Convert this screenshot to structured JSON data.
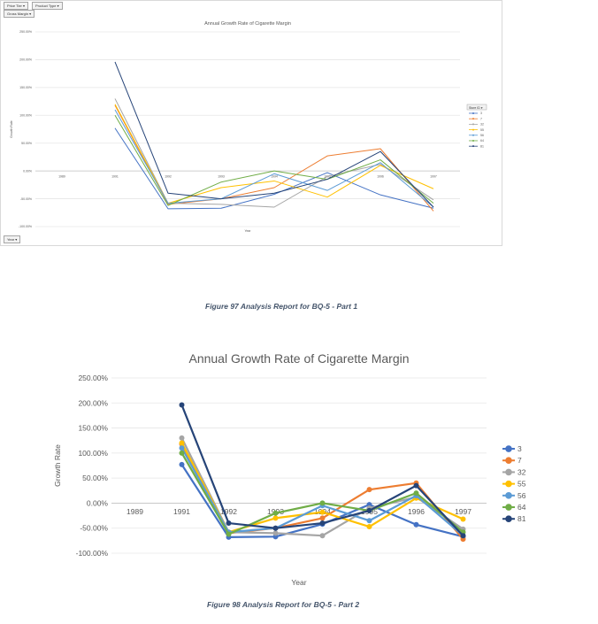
{
  "chart_data": [
    {
      "type": "line",
      "title": "Annual Growth Rate of Cigarette Margin",
      "xlabel": "Year",
      "ylabel": "Growth Rate",
      "categories": [
        "1989",
        "1991",
        "1992",
        "1993",
        "1994",
        "1995",
        "1996",
        "1997"
      ],
      "ylim": [
        -100,
        250
      ],
      "yticks": [
        "250.00%",
        "200.00%",
        "150.00%",
        "100.00%",
        "50.00%",
        "0.00%",
        "-50.00%",
        "-100.00%"
      ],
      "ytick_values": [
        250,
        200,
        150,
        100,
        50,
        0,
        -50,
        -100
      ],
      "grid": true,
      "legend_title": "Store ID",
      "legend": "right",
      "filter_buttons": [
        "Price Tier",
        "Product Type",
        "Gross Margin",
        "Year"
      ],
      "series": [
        {
          "name": "3",
          "color": "#4472c4",
          "values": [
            null,
            77,
            -68,
            -67,
            -42,
            -3,
            -43,
            -67
          ]
        },
        {
          "name": "7",
          "color": "#ed7d31",
          "values": [
            null,
            118,
            -60,
            -50,
            -30,
            27,
            40,
            -72
          ]
        },
        {
          "name": "32",
          "color": "#a5a5a5",
          "values": [
            null,
            130,
            -58,
            -60,
            -65,
            -10,
            12,
            -52
          ]
        },
        {
          "name": "55",
          "color": "#ffc000",
          "values": [
            null,
            120,
            -58,
            -30,
            -18,
            -47,
            10,
            -32
          ]
        },
        {
          "name": "56",
          "color": "#5b9bd5",
          "values": [
            null,
            110,
            -58,
            -50,
            -5,
            -35,
            15,
            -65
          ]
        },
        {
          "name": "64",
          "color": "#70ad47",
          "values": [
            null,
            100,
            -62,
            -20,
            0,
            -15,
            20,
            -58
          ]
        },
        {
          "name": "81",
          "color": "#264478",
          "values": [
            null,
            196,
            -40,
            -50,
            -40,
            -15,
            35,
            -65
          ]
        }
      ]
    },
    {
      "type": "line",
      "title": "Annual Growth Rate of Cigarette Margin",
      "xlabel": "Year",
      "ylabel": "Growth Rate",
      "categories": [
        "1989",
        "1991",
        "1992",
        "1993",
        "1994",
        "1995",
        "1996",
        "1997"
      ],
      "ylim": [
        -100,
        250
      ],
      "yticks": [
        "250.00%",
        "200.00%",
        "150.00%",
        "100.00%",
        "50.00%",
        "0.00%",
        "-50.00%",
        "-100.00%"
      ],
      "ytick_values": [
        250,
        200,
        150,
        100,
        50,
        0,
        -50,
        -100
      ],
      "grid": true,
      "legend": "right",
      "series": [
        {
          "name": "3",
          "color": "#4472c4",
          "values": [
            null,
            77,
            -68,
            -67,
            -42,
            -3,
            -43,
            -67
          ]
        },
        {
          "name": "7",
          "color": "#ed7d31",
          "values": [
            null,
            118,
            -60,
            -50,
            -30,
            27,
            40,
            -72
          ]
        },
        {
          "name": "32",
          "color": "#a5a5a5",
          "values": [
            null,
            130,
            -58,
            -60,
            -65,
            -10,
            12,
            -52
          ]
        },
        {
          "name": "55",
          "color": "#ffc000",
          "values": [
            null,
            120,
            -58,
            -30,
            -18,
            -47,
            10,
            -32
          ]
        },
        {
          "name": "56",
          "color": "#5b9bd5",
          "values": [
            null,
            110,
            -58,
            -50,
            -5,
            -35,
            15,
            -65
          ]
        },
        {
          "name": "64",
          "color": "#70ad47",
          "values": [
            null,
            100,
            -62,
            -20,
            0,
            -15,
            20,
            -58
          ]
        },
        {
          "name": "81",
          "color": "#264478",
          "values": [
            null,
            196,
            -40,
            -50,
            -40,
            -15,
            35,
            -65
          ]
        }
      ]
    }
  ],
  "captions": {
    "fig1": "Figure 97 Analysis Report for BQ-5 - Part 1",
    "fig2": "Figure 98 Analysis Report for BQ-5 - Part 2"
  }
}
